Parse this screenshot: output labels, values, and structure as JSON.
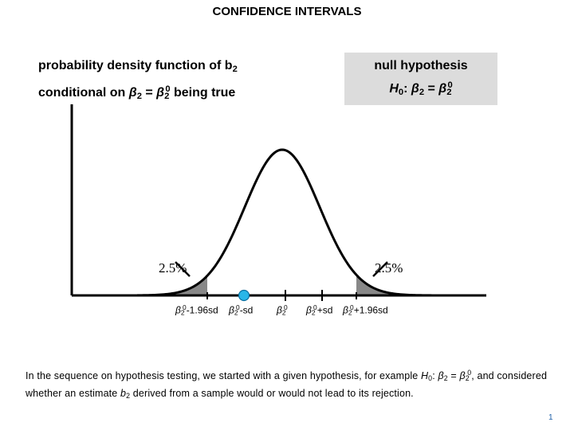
{
  "title": "CONFIDENCE INTERVALS",
  "pdf_label": {
    "line1_prefix": "probability density function of ",
    "line1_var": "b",
    "line1_sub": "2",
    "line2_prefix": "conditional on ",
    "beta": "β",
    "line2_sub": "2",
    "equals": " = ",
    "sup0": "0",
    "line2_suffix": " being true"
  },
  "null_hypothesis": {
    "heading": "null hypothesis",
    "H": "H",
    "H_sub": "0",
    "colon": ": ",
    "beta": "β",
    "sub": "2",
    "equals": " = ",
    "sup0": "0"
  },
  "tails": {
    "left_pct": "2.5%",
    "right_pct": "2.5%"
  },
  "ticks": [
    {
      "beta": "β",
      "sub": "2",
      "sup": "0",
      "suffix": "-1.96sd"
    },
    {
      "beta": "β",
      "sub": "2",
      "sup": "0",
      "suffix": "-sd"
    },
    {
      "beta": "β",
      "sub": "2",
      "sup": "0",
      "suffix": ""
    },
    {
      "beta": "β",
      "sub": "2",
      "sup": "0",
      "suffix": "+sd"
    },
    {
      "beta": "β",
      "sub": "2",
      "sup": "0",
      "suffix": "+1.96sd"
    }
  ],
  "body": {
    "p1": "In the sequence on hypothesis testing, we started with a given hypothesis, for example ",
    "H": "H",
    "H_sub": "0",
    "colon": ":",
    "beta": "β",
    "beta_sub": "2",
    "eq": " = ",
    "beta2": "β",
    "beta2_sub": "2",
    "sup0": "0",
    "p2": ", and considered whether an estimate ",
    "b": "b",
    "b_sub": "2",
    "p3": " derived from a sample would or would not lead to its rejection."
  },
  "page_number": "1",
  "colors": {
    "shade": "#888888",
    "marker": "#29b6e8",
    "box": "#dcdcdc",
    "page_number": "#1f5fa8"
  }
}
